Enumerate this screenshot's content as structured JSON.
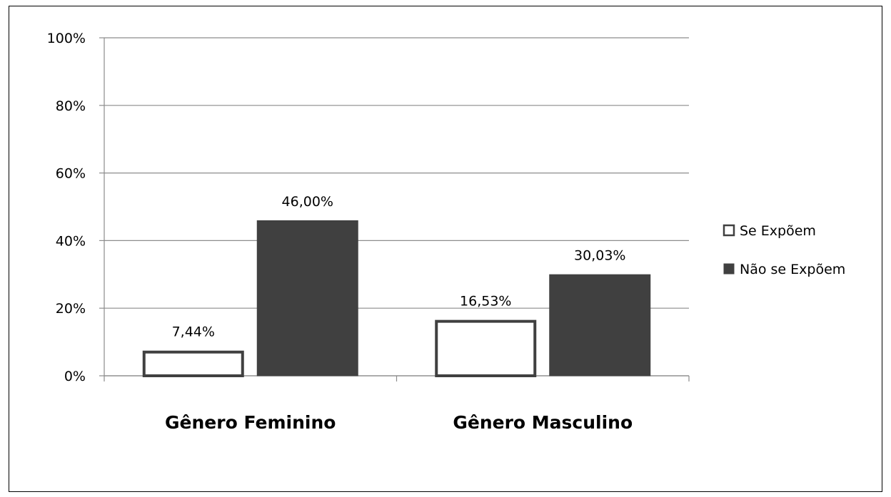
{
  "chart_data": {
    "type": "bar",
    "title": "",
    "xlabel": "",
    "ylabel": "",
    "categories": [
      "Gênero Feminino",
      "Gênero Masculino"
    ],
    "series": [
      {
        "name": "Se Expõem",
        "values": [
          7.44,
          16.53
        ],
        "labels": [
          "7,44%",
          "16,53%"
        ],
        "fill": "#ffffff",
        "stroke": "#404040"
      },
      {
        "name": "Não se Expõem",
        "values": [
          46.0,
          30.03
        ],
        "labels": [
          "46,00%",
          "30,03%"
        ],
        "fill": "#404040",
        "stroke": "#404040"
      }
    ],
    "ylim": [
      0,
      100
    ],
    "yticks": [
      0,
      20,
      40,
      60,
      80,
      100
    ],
    "ytick_labels": [
      "0%",
      "20%",
      "40%",
      "60%",
      "80%",
      "100%"
    ],
    "grid": true,
    "legend_position": "right"
  }
}
